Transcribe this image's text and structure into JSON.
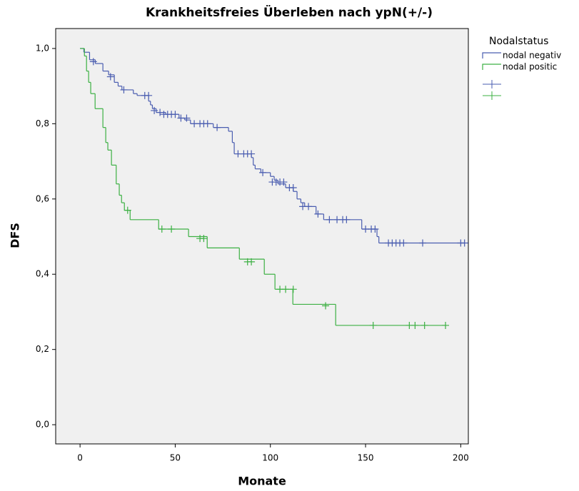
{
  "chart_data": {
    "type": "kaplan-meier",
    "title": "Krankheitsfreies Überleben nach ypN(+/-)",
    "x_label": "Monate",
    "y_label": "DFS",
    "legend_title": "Nodalstatus",
    "xlim": [
      -12.8,
      204
    ],
    "ylim": [
      -0.051,
      1.053
    ],
    "xticks": [
      0,
      50,
      100,
      150,
      200
    ],
    "yticks": [
      {
        "value": 0,
        "label": "0,0"
      },
      {
        "value": 0.2,
        "label": "0,2"
      },
      {
        "value": 0.4,
        "label": "0,4"
      },
      {
        "value": 0.6,
        "label": "0,6"
      },
      {
        "value": 0.8,
        "label": "0,8"
      },
      {
        "value": 1,
        "label": "1,0"
      }
    ],
    "series": [
      {
        "name": "nodal negativ",
        "color": "#4a5db0",
        "x": [
          0,
          2,
          5,
          8,
          12,
          15,
          18,
          20,
          22,
          28,
          30,
          36,
          37,
          38,
          40,
          45,
          52,
          55,
          58,
          70,
          78,
          80,
          81,
          90,
          91,
          92,
          95,
          100,
          102,
          104,
          108,
          112,
          114,
          116,
          118,
          124,
          128,
          148,
          156,
          157,
          202
        ],
        "values": [
          1,
          0.99,
          0.97,
          0.96,
          0.94,
          0.93,
          0.91,
          0.9,
          0.89,
          0.88,
          0.875,
          0.86,
          0.85,
          0.84,
          0.83,
          0.825,
          0.815,
          0.81,
          0.8,
          0.79,
          0.78,
          0.75,
          0.72,
          0.71,
          0.69,
          0.68,
          0.67,
          0.66,
          0.65,
          0.64,
          0.63,
          0.62,
          0.6,
          0.59,
          0.58,
          0.56,
          0.545,
          0.52,
          0.5,
          0.483,
          0.483
        ],
        "censor_x": [
          7,
          16,
          23,
          34,
          36,
          39,
          42,
          44,
          46,
          48,
          50,
          53,
          56,
          60,
          63,
          65,
          67,
          72,
          83,
          86,
          88,
          90,
          96,
          101,
          103,
          105,
          107,
          110,
          112,
          117,
          120,
          125,
          131,
          135,
          138,
          140,
          150,
          153,
          155,
          162,
          164,
          166,
          168,
          170,
          180,
          200,
          202
        ],
        "censor_y": [
          0.965,
          0.925,
          0.89,
          0.875,
          0.875,
          0.835,
          0.83,
          0.825,
          0.825,
          0.825,
          0.825,
          0.815,
          0.815,
          0.8,
          0.8,
          0.8,
          0.8,
          0.79,
          0.72,
          0.72,
          0.72,
          0.72,
          0.67,
          0.645,
          0.645,
          0.645,
          0.645,
          0.63,
          0.63,
          0.58,
          0.58,
          0.56,
          0.545,
          0.545,
          0.545,
          0.545,
          0.52,
          0.52,
          0.52,
          0.483,
          0.483,
          0.483,
          0.483,
          0.483,
          0.483,
          0.483,
          0.483
        ]
      },
      {
        "name": "nodal positic",
        "color": "#3cb043",
        "x": [
          0,
          2.3,
          3.4,
          4.5,
          5.6,
          7.9,
          12,
          13.5,
          14.6,
          16.5,
          19,
          20.6,
          21.8,
          23.3,
          26.3,
          41.3,
          57,
          66.8,
          83.7,
          96.8,
          102.4,
          111.8,
          134.3,
          192
        ],
        "values": [
          1,
          0.98,
          0.94,
          0.91,
          0.88,
          0.84,
          0.79,
          0.75,
          0.73,
          0.69,
          0.64,
          0.61,
          0.59,
          0.57,
          0.545,
          0.52,
          0.5,
          0.47,
          0.44,
          0.4,
          0.36,
          0.32,
          0.264,
          0.264
        ],
        "censor_x": [
          25,
          43,
          48,
          63,
          65,
          88,
          90,
          105,
          108,
          112,
          129,
          154,
          173,
          176,
          181,
          192
        ],
        "censor_y": [
          0.57,
          0.52,
          0.52,
          0.495,
          0.495,
          0.433,
          0.433,
          0.36,
          0.36,
          0.36,
          0.316,
          0.264,
          0.264,
          0.264,
          0.264,
          0.264
        ]
      }
    ]
  }
}
